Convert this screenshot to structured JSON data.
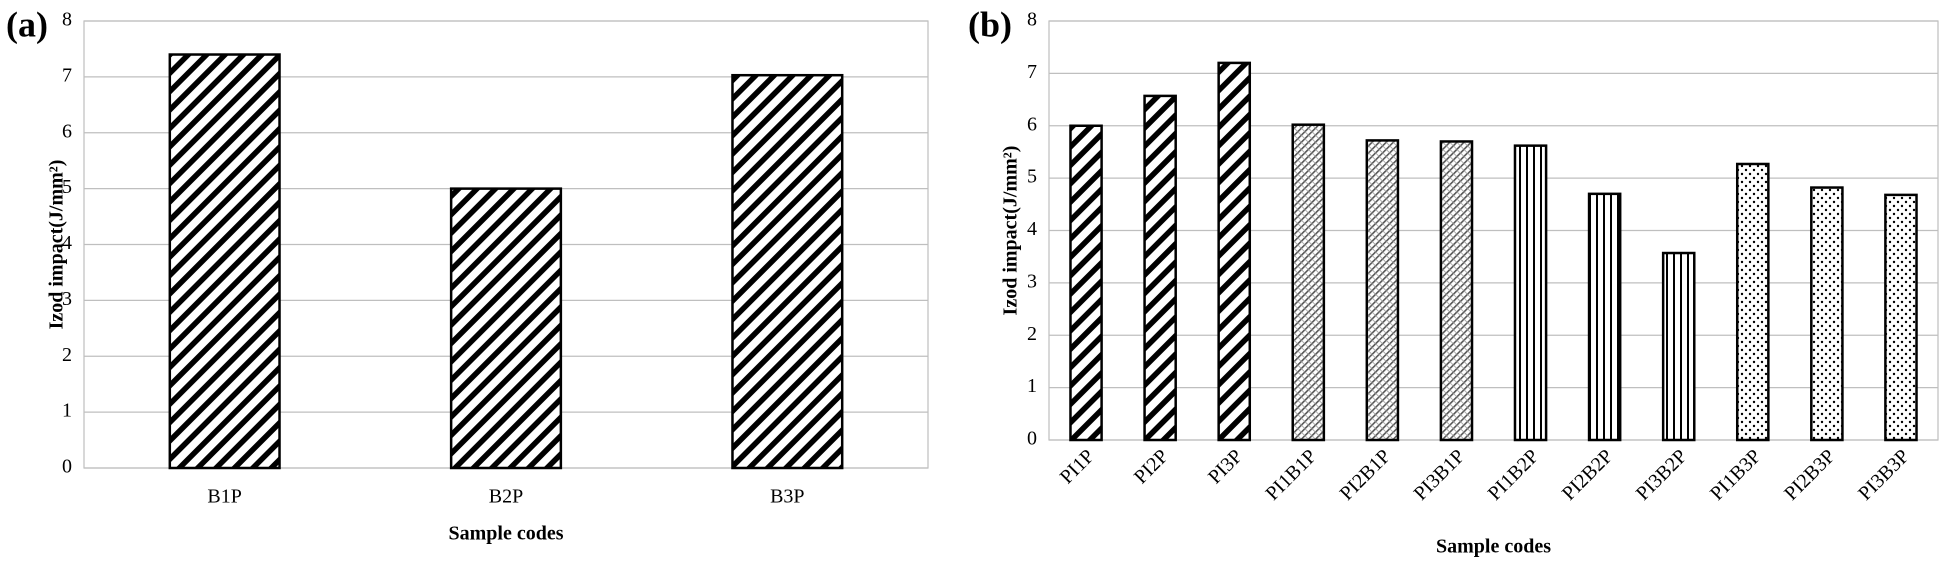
{
  "chart_data": [
    {
      "type": "bar",
      "panel_label": "(a)",
      "y_label": "Izod impact(J/mm²)",
      "x_label": "Sample codes",
      "categories": [
        "B1P",
        "B2P",
        "B3P"
      ],
      "values": [
        7.4,
        5.0,
        7.03
      ],
      "patterns": [
        "wide-diagonal",
        "wide-diagonal",
        "wide-diagonal"
      ],
      "color": "#000000",
      "ylim": [
        0,
        8
      ],
      "yticks": [
        0,
        1,
        2,
        3,
        4,
        5,
        6,
        7,
        8
      ],
      "grid": true
    },
    {
      "type": "bar",
      "panel_label": "(b)",
      "y_label": "Izod impact(J/mm²)",
      "x_label": "Sample codes",
      "categories": [
        "PI1P",
        "PI2P",
        "PI3P",
        "PI1B1P",
        "PI2B1P",
        "PI3B1P",
        "PI1B2P",
        "PI2B2P",
        "PI3B2P",
        "PI1B3P",
        "PI2B3P",
        "PI3B3P"
      ],
      "values": [
        6.0,
        6.57,
        7.2,
        6.02,
        5.72,
        5.7,
        5.62,
        4.7,
        3.57,
        5.27,
        4.82,
        4.68
      ],
      "patterns": [
        "wide-diagonal",
        "wide-diagonal",
        "wide-diagonal",
        "fine-diagonal",
        "fine-diagonal",
        "fine-diagonal",
        "vertical",
        "vertical",
        "vertical",
        "dots",
        "dots",
        "dots"
      ],
      "color": "#000000",
      "ylim": [
        0,
        8
      ],
      "yticks": [
        0,
        1,
        2,
        3,
        4,
        5,
        6,
        7,
        8
      ],
      "grid": true,
      "rotated_x_labels": true
    }
  ]
}
